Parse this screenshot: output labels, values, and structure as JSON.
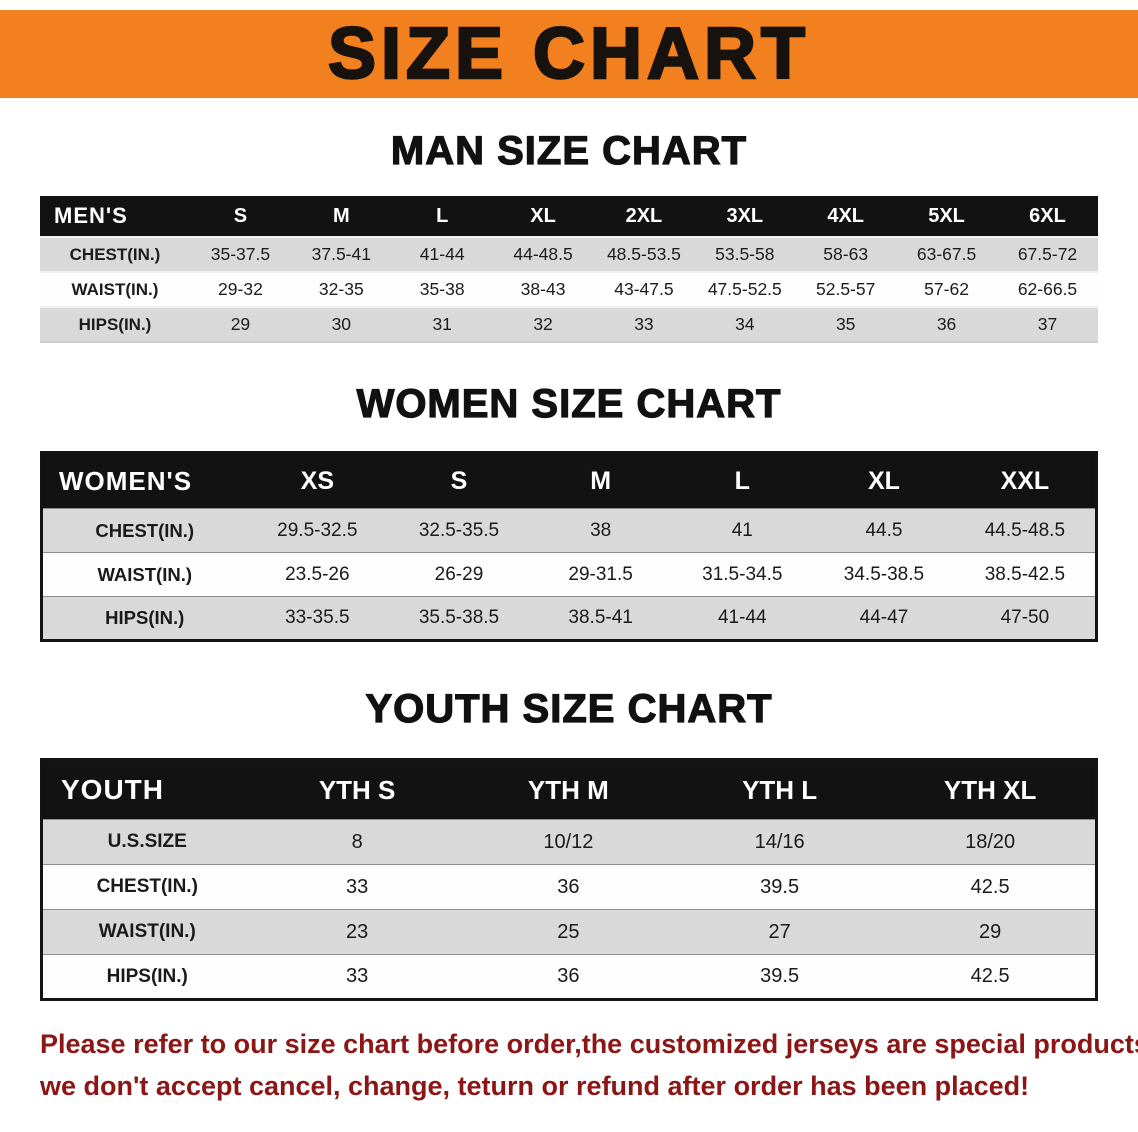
{
  "banner": {
    "title": "SIZE CHART",
    "background_color": "#f2801e",
    "text_color": "#17120d"
  },
  "sections": [
    {
      "id": "men",
      "title": "MAN SIZE CHART",
      "table": {
        "header": [
          "MEN'S",
          "S",
          "M",
          "L",
          "XL",
          "2XL",
          "3XL",
          "4XL",
          "5XL",
          "6XL"
        ],
        "rows": [
          [
            "CHEST(IN.)",
            "35-37.5",
            "37.5-41",
            "41-44",
            "44-48.5",
            "48.5-53.5",
            "53.5-58",
            "58-63",
            "63-67.5",
            "67.5-72"
          ],
          [
            "WAIST(IN.)",
            "29-32",
            "32-35",
            "35-38",
            "38-43",
            "43-47.5",
            "47.5-52.5",
            "52.5-57",
            "57-62",
            "62-66.5"
          ],
          [
            "HIPS(IN.)",
            "29",
            "30",
            "31",
            "32",
            "33",
            "34",
            "35",
            "36",
            "37"
          ]
        ]
      }
    },
    {
      "id": "women",
      "title": "WOMEN SIZE CHART",
      "table": {
        "header": [
          "WOMEN'S",
          "XS",
          "S",
          "M",
          "L",
          "XL",
          "XXL"
        ],
        "rows": [
          [
            "CHEST(IN.)",
            "29.5-32.5",
            "32.5-35.5",
            "38",
            "41",
            "44.5",
            "44.5-48.5"
          ],
          [
            "WAIST(IN.)",
            "23.5-26",
            "26-29",
            "29-31.5",
            "31.5-34.5",
            "34.5-38.5",
            "38.5-42.5"
          ],
          [
            "HIPS(IN.)",
            "33-35.5",
            "35.5-38.5",
            "38.5-41",
            "41-44",
            "44-47",
            "47-50"
          ]
        ]
      }
    },
    {
      "id": "youth",
      "title": "YOUTH SIZE CHART",
      "table": {
        "header": [
          "YOUTH",
          "YTH S",
          "YTH M",
          "YTH L",
          "YTH XL"
        ],
        "rows": [
          [
            "U.S.SIZE",
            "8",
            "10/12",
            "14/16",
            "18/20"
          ],
          [
            "CHEST(IN.)",
            "33",
            "36",
            "39.5",
            "42.5"
          ],
          [
            "WAIST(IN.)",
            "23",
            "25",
            "27",
            "29"
          ],
          [
            "HIPS(IN.)",
            "33",
            "36",
            "39.5",
            "42.5"
          ]
        ]
      }
    }
  ],
  "footer": {
    "line1": "Please refer to our size chart before order,the customized jerseys are special products,",
    "line2": "we don't accept cancel, change, teturn or refund after order has been placed!",
    "text_color": "#8c1515"
  }
}
